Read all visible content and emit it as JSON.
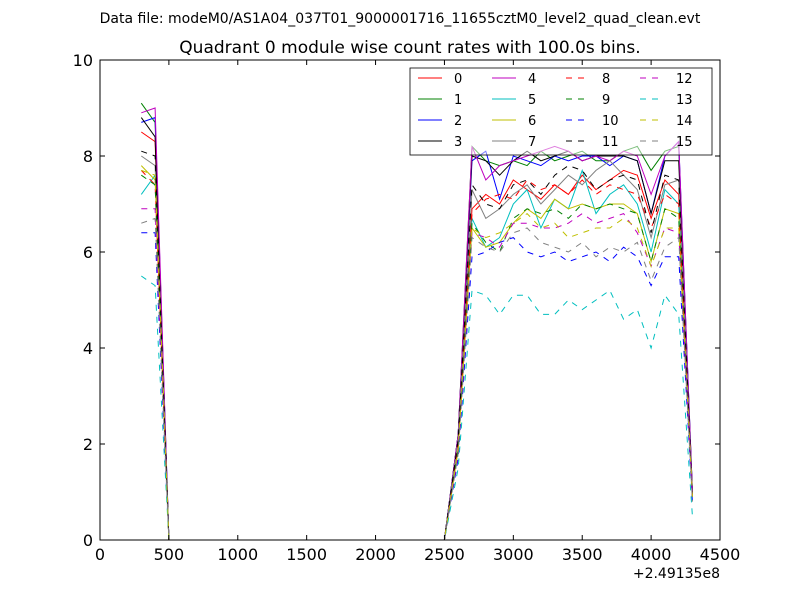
{
  "chart_data": {
    "type": "line",
    "suptitle": "Data file: modeM0/AS1A04_037T01_9000001716_11655cztM0_level2_quad_clean.evt",
    "title": "Quadrant 0 module wise count rates with 100.0s bins.",
    "xlabel": "",
    "ylabel": "",
    "x_offset_label": "+2.49135e8",
    "xlim": [
      0,
      4500
    ],
    "ylim": [
      0,
      10
    ],
    "xticks": [
      0,
      500,
      1000,
      1500,
      2000,
      2500,
      3000,
      3500,
      4000,
      4500
    ],
    "yticks": [
      0,
      2,
      4,
      6,
      8,
      10
    ],
    "grid": false,
    "legend_position": "top-right",
    "x": [
      300,
      400,
      500,
      600,
      700,
      800,
      900,
      1000,
      1100,
      1200,
      1300,
      1400,
      1500,
      1600,
      1700,
      1800,
      1900,
      2000,
      2100,
      2200,
      2300,
      2400,
      2500,
      2600,
      2700,
      2800,
      2900,
      3000,
      3100,
      3200,
      3300,
      3400,
      3500,
      3600,
      3700,
      3800,
      3900,
      4000,
      4100,
      4200,
      4300
    ],
    "series": [
      {
        "name": "0",
        "color": "#ff0000",
        "dash": "solid",
        "values": [
          8.5,
          8.3,
          0,
          0,
          0,
          0,
          0,
          0,
          0,
          0,
          0,
          0,
          0,
          0,
          0,
          0,
          0,
          0,
          0,
          0,
          0,
          0,
          0,
          2.1,
          6.9,
          7.2,
          7.0,
          7.5,
          7.3,
          7.1,
          7.4,
          7.2,
          7.6,
          7.3,
          7.5,
          7.7,
          7.6,
          6.7,
          7.5,
          7.2,
          0.9
        ]
      },
      {
        "name": "1",
        "color": "#008000",
        "dash": "solid",
        "values": [
          9.1,
          8.7,
          0,
          0,
          0,
          0,
          0,
          0,
          0,
          0,
          0,
          0,
          0,
          0,
          0,
          0,
          0,
          0,
          0,
          0,
          0,
          0,
          0,
          2.2,
          8.2,
          7.9,
          7.8,
          7.9,
          7.8,
          8.1,
          7.9,
          8.0,
          8.1,
          7.9,
          7.9,
          8.1,
          8.2,
          7.7,
          8.1,
          8.2,
          1.0
        ]
      },
      {
        "name": "2",
        "color": "#0000ff",
        "dash": "solid",
        "values": [
          8.7,
          8.8,
          0,
          0,
          0,
          0,
          0,
          0,
          0,
          0,
          0,
          0,
          0,
          0,
          0,
          0,
          0,
          0,
          0,
          0,
          0,
          0,
          0,
          2.2,
          7.9,
          8.1,
          7.1,
          8.0,
          7.9,
          7.8,
          8.0,
          7.9,
          8.0,
          8.0,
          7.8,
          8.0,
          7.9,
          6.8,
          8.0,
          8.3,
          1.0
        ]
      },
      {
        "name": "3",
        "color": "#000000",
        "dash": "solid",
        "values": [
          8.8,
          8.4,
          0,
          0,
          0,
          0,
          0,
          0,
          0,
          0,
          0,
          0,
          0,
          0,
          0,
          0,
          0,
          0,
          0,
          0,
          0,
          0,
          0,
          2.2,
          8.0,
          7.9,
          7.6,
          7.9,
          8.1,
          7.9,
          8.0,
          8.1,
          7.9,
          8.0,
          8.0,
          8.0,
          7.9,
          6.8,
          7.9,
          7.9,
          1.0
        ]
      },
      {
        "name": "4",
        "color": "#bf00bf",
        "dash": "solid",
        "values": [
          8.9,
          9.0,
          0,
          0,
          0,
          0,
          0,
          0,
          0,
          0,
          0,
          0,
          0,
          0,
          0,
          0,
          0,
          0,
          0,
          0,
          0,
          0,
          0,
          2.2,
          8.2,
          7.5,
          7.8,
          7.9,
          8.0,
          8.1,
          8.2,
          8.1,
          7.9,
          8.0,
          7.9,
          8.1,
          8.0,
          7.2,
          8.0,
          8.3,
          1.0
        ]
      },
      {
        "name": "5",
        "color": "#00bfbf",
        "dash": "solid",
        "values": [
          7.2,
          7.6,
          0,
          0,
          0,
          0,
          0,
          0,
          0,
          0,
          0,
          0,
          0,
          0,
          0,
          0,
          0,
          0,
          0,
          0,
          0,
          0,
          0,
          1.9,
          6.7,
          6.1,
          6.3,
          7.0,
          7.3,
          6.5,
          7.1,
          6.9,
          7.7,
          6.8,
          7.2,
          7.4,
          7.0,
          6.0,
          7.3,
          7.0,
          0.9
        ]
      },
      {
        "name": "6",
        "color": "#bfbf00",
        "dash": "solid",
        "values": [
          7.8,
          7.5,
          0,
          0,
          0,
          0,
          0,
          0,
          0,
          0,
          0,
          0,
          0,
          0,
          0,
          0,
          0,
          0,
          0,
          0,
          0,
          0,
          0,
          1.9,
          6.5,
          6.1,
          6.2,
          6.6,
          6.9,
          6.7,
          7.1,
          6.9,
          7.0,
          6.9,
          7.0,
          7.0,
          6.8,
          5.8,
          6.9,
          6.8,
          0.9
        ]
      },
      {
        "name": "7",
        "color": "#808080",
        "dash": "solid",
        "values": [
          8.0,
          7.8,
          0,
          0,
          0,
          0,
          0,
          0,
          0,
          0,
          0,
          0,
          0,
          0,
          0,
          0,
          0,
          0,
          0,
          0,
          0,
          0,
          0,
          2.1,
          7.3,
          6.7,
          6.9,
          7.2,
          7.4,
          7.0,
          7.3,
          7.6,
          7.4,
          7.7,
          7.9,
          7.6,
          7.3,
          6.3,
          7.4,
          7.5,
          0.9
        ]
      },
      {
        "name": "8",
        "color": "#ff0000",
        "dash": "dashed",
        "values": [
          7.7,
          7.4,
          0,
          0,
          0,
          0,
          0,
          0,
          0,
          0,
          0,
          0,
          0,
          0,
          0,
          0,
          0,
          0,
          0,
          0,
          0,
          0,
          0,
          2.0,
          6.8,
          7.1,
          7.2,
          7.1,
          7.5,
          7.3,
          7.4,
          7.2,
          7.5,
          7.2,
          7.4,
          7.3,
          7.2,
          6.5,
          7.2,
          7.0,
          0.9
        ]
      },
      {
        "name": "9",
        "color": "#008000",
        "dash": "dashed",
        "values": [
          7.6,
          7.4,
          0,
          0,
          0,
          0,
          0,
          0,
          0,
          0,
          0,
          0,
          0,
          0,
          0,
          0,
          0,
          0,
          0,
          0,
          0,
          0,
          0,
          1.9,
          6.6,
          6.2,
          6.0,
          6.7,
          6.9,
          6.8,
          6.9,
          6.7,
          7.0,
          6.9,
          7.0,
          6.9,
          6.8,
          5.8,
          6.9,
          6.7,
          0.9
        ]
      },
      {
        "name": "10",
        "color": "#0000ff",
        "dash": "dashed",
        "values": [
          6.4,
          6.4,
          0,
          0,
          0,
          0,
          0,
          0,
          0,
          0,
          0,
          0,
          0,
          0,
          0,
          0,
          0,
          0,
          0,
          0,
          0,
          0,
          0,
          1.7,
          5.9,
          6.0,
          6.2,
          6.3,
          6.0,
          5.9,
          6.0,
          5.8,
          5.9,
          6.0,
          5.8,
          6.1,
          5.9,
          5.3,
          5.9,
          5.9,
          0.8
        ]
      },
      {
        "name": "11",
        "color": "#000000",
        "dash": "dashed",
        "values": [
          8.1,
          8.0,
          0,
          0,
          0,
          0,
          0,
          0,
          0,
          0,
          0,
          0,
          0,
          0,
          0,
          0,
          0,
          0,
          0,
          0,
          0,
          0,
          0,
          2.1,
          7.4,
          7.0,
          6.9,
          7.4,
          7.5,
          7.2,
          7.6,
          7.8,
          7.7,
          7.3,
          7.5,
          7.6,
          7.5,
          6.4,
          7.6,
          7.5,
          0.9
        ]
      },
      {
        "name": "12",
        "color": "#bf00bf",
        "dash": "dashed",
        "values": [
          6.9,
          6.9,
          0,
          0,
          0,
          0,
          0,
          0,
          0,
          0,
          0,
          0,
          0,
          0,
          0,
          0,
          0,
          0,
          0,
          0,
          0,
          0,
          0,
          1.8,
          6.4,
          6.3,
          6.1,
          6.6,
          6.6,
          6.5,
          6.5,
          6.6,
          6.8,
          6.6,
          6.7,
          6.8,
          6.4,
          5.7,
          6.5,
          6.4,
          0.9
        ]
      },
      {
        "name": "13",
        "color": "#00bfbf",
        "dash": "dashed",
        "values": [
          5.5,
          5.3,
          0,
          0,
          0,
          0,
          0,
          0,
          0,
          0,
          0,
          0,
          0,
          0,
          0,
          0,
          0,
          0,
          0,
          0,
          0,
          0,
          0,
          1.5,
          5.2,
          5.1,
          4.7,
          5.1,
          5.1,
          4.7,
          4.7,
          5.0,
          4.8,
          5.0,
          5.2,
          4.6,
          4.8,
          4.0,
          5.1,
          4.7,
          0.5
        ]
      },
      {
        "name": "14",
        "color": "#bfbf00",
        "dash": "dashed",
        "values": [
          7.7,
          7.6,
          0,
          0,
          0,
          0,
          0,
          0,
          0,
          0,
          0,
          0,
          0,
          0,
          0,
          0,
          0,
          0,
          0,
          0,
          0,
          0,
          0,
          1.9,
          6.5,
          6.3,
          6.4,
          6.6,
          6.8,
          6.5,
          6.6,
          6.3,
          6.4,
          6.5,
          6.5,
          6.7,
          6.5,
          5.7,
          6.5,
          6.5,
          0.9
        ]
      },
      {
        "name": "15",
        "color": "#808080",
        "dash": "dashed",
        "values": [
          6.6,
          6.7,
          0,
          0,
          0,
          0,
          0,
          0,
          0,
          0,
          0,
          0,
          0,
          0,
          0,
          0,
          0,
          0,
          0,
          0,
          0,
          0,
          0,
          1.8,
          6.3,
          6.1,
          6.0,
          6.4,
          6.5,
          6.2,
          6.1,
          6.0,
          6.2,
          5.9,
          6.1,
          6.0,
          6.2,
          5.4,
          6.1,
          6.3,
          0.8
        ]
      }
    ]
  }
}
